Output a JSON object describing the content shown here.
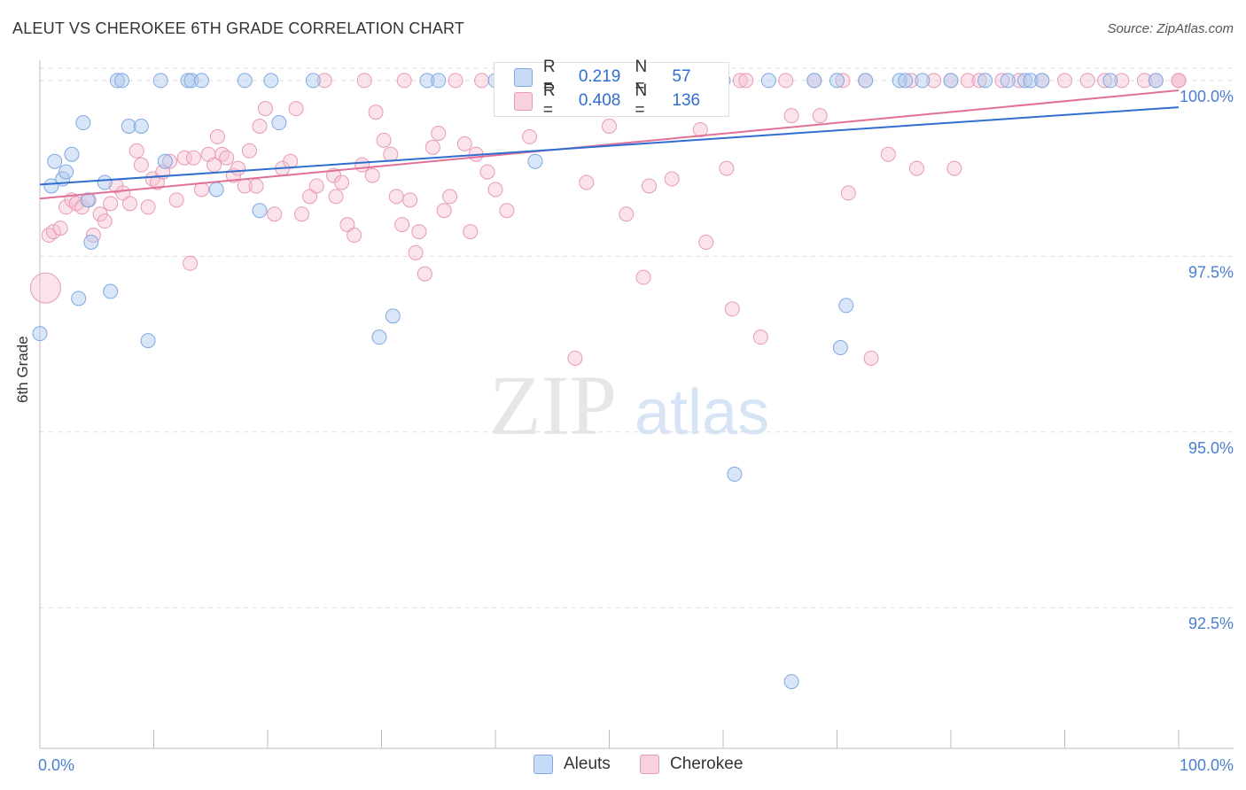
{
  "title": "ALEUT VS CHEROKEE 6TH GRADE CORRELATION CHART",
  "source": "Source: ZipAtlas.com",
  "watermark": {
    "zip": "ZIP",
    "atlas": "atlas"
  },
  "legend": {
    "rows": [
      {
        "label": "R =",
        "r": "0.219",
        "n_label": "N =",
        "n": "57",
        "color": "#aac8f0",
        "border": "#6f9fe0"
      },
      {
        "label": "R =",
        "r": "0.408",
        "n_label": "N =",
        "n": "136",
        "color": "#f7c0d2",
        "border": "#e38aaa"
      }
    ]
  },
  "bottom_legend": {
    "aleuts": "Aleuts",
    "cherokee": "Cherokee"
  },
  "colors": {
    "aleut_fill": "rgba(170,200,240,0.45)",
    "aleut_stroke": "#7fa8e0",
    "aleut_line": "#2f6ed0",
    "cherokee_fill": "rgba(247,192,210,0.45)",
    "cherokee_stroke": "#e79ab6",
    "cherokee_line": "#e0709a",
    "tick_label": "#4a7fd0",
    "grid": "#dddddd"
  },
  "chart_data": {
    "type": "scatter",
    "title": "ALEUT VS CHEROKEE 6TH GRADE CORRELATION CHART",
    "xlabel": "",
    "ylabel": "6th Grade",
    "xlim": [
      0,
      100
    ],
    "ylim": [
      90.5,
      100.15
    ],
    "x_tick_labels": [
      "0.0%",
      "100.0%"
    ],
    "y_ticks": [
      92.5,
      95.0,
      97.5,
      100.0
    ],
    "y_tick_labels": [
      "92.5%",
      "95.0%",
      "97.5%",
      "100.0%"
    ],
    "grid": "horizontal dashed",
    "legend_placement": "bottom-center",
    "series": [
      {
        "name": "Aleuts",
        "r": 0.219,
        "n": 57,
        "trend": {
          "x": [
            0,
            100
          ],
          "y": [
            98.52,
            99.62
          ]
        },
        "points": [
          [
            0,
            96.4
          ],
          [
            1,
            98.5
          ],
          [
            1.3,
            98.85
          ],
          [
            2,
            98.6
          ],
          [
            2.3,
            98.7
          ],
          [
            2.8,
            98.95
          ],
          [
            3.4,
            96.9
          ],
          [
            3.8,
            99.4
          ],
          [
            4.2,
            98.3
          ],
          [
            4.5,
            97.7
          ],
          [
            5.7,
            98.55
          ],
          [
            6.2,
            97.0
          ],
          [
            6.8,
            100
          ],
          [
            7.2,
            100
          ],
          [
            7.8,
            99.35
          ],
          [
            8.9,
            99.35
          ],
          [
            9.5,
            96.3
          ],
          [
            10.6,
            100
          ],
          [
            11,
            98.85
          ],
          [
            13,
            100
          ],
          [
            13.3,
            100
          ],
          [
            14.2,
            100
          ],
          [
            15.5,
            98.45
          ],
          [
            18,
            100
          ],
          [
            19.3,
            98.15
          ],
          [
            20.3,
            100
          ],
          [
            21,
            99.4
          ],
          [
            24,
            100
          ],
          [
            29.8,
            96.35
          ],
          [
            31,
            96.65
          ],
          [
            34,
            100
          ],
          [
            35,
            100
          ],
          [
            40,
            100
          ],
          [
            43.5,
            98.85
          ],
          [
            53,
            100
          ],
          [
            54,
            100
          ],
          [
            59,
            100
          ],
          [
            60,
            100
          ],
          [
            61,
            94.4
          ],
          [
            64,
            100
          ],
          [
            66,
            91.45
          ],
          [
            68,
            100
          ],
          [
            70,
            100
          ],
          [
            70.3,
            96.2
          ],
          [
            70.8,
            96.8
          ],
          [
            72.5,
            100
          ],
          [
            75.5,
            100
          ],
          [
            76,
            100
          ],
          [
            77.5,
            100
          ],
          [
            80,
            100
          ],
          [
            83,
            100
          ],
          [
            85,
            100
          ],
          [
            86.5,
            100
          ],
          [
            87,
            100
          ],
          [
            88,
            100
          ],
          [
            94,
            100
          ],
          [
            98,
            100
          ]
        ]
      },
      {
        "name": "Cherokee",
        "r": 0.408,
        "n": 136,
        "trend": {
          "x": [
            0,
            100
          ],
          "y": [
            98.32,
            99.86
          ]
        },
        "points": [
          [
            0.5,
            97.05
          ],
          [
            0.8,
            97.8
          ],
          [
            1.2,
            97.85
          ],
          [
            1.8,
            97.9
          ],
          [
            2.3,
            98.2
          ],
          [
            2.8,
            98.3
          ],
          [
            3.2,
            98.25
          ],
          [
            3.7,
            98.2
          ],
          [
            4.3,
            98.3
          ],
          [
            4.7,
            97.8
          ],
          [
            5.3,
            98.1
          ],
          [
            5.7,
            98.0
          ],
          [
            6.2,
            98.25
          ],
          [
            6.7,
            98.5
          ],
          [
            7.3,
            98.4
          ],
          [
            7.9,
            98.25
          ],
          [
            8.5,
            99.0
          ],
          [
            8.9,
            98.8
          ],
          [
            9.5,
            98.2
          ],
          [
            9.9,
            98.6
          ],
          [
            10.3,
            98.55
          ],
          [
            10.8,
            98.7
          ],
          [
            11.4,
            98.85
          ],
          [
            12,
            98.3
          ],
          [
            12.7,
            98.9
          ],
          [
            13.2,
            97.4
          ],
          [
            13.5,
            98.9
          ],
          [
            14.2,
            98.45
          ],
          [
            14.8,
            98.95
          ],
          [
            15.3,
            98.8
          ],
          [
            15.6,
            99.2
          ],
          [
            16,
            98.95
          ],
          [
            16.4,
            98.9
          ],
          [
            17,
            98.65
          ],
          [
            17.4,
            98.75
          ],
          [
            18,
            98.5
          ],
          [
            18.4,
            99.0
          ],
          [
            19,
            98.5
          ],
          [
            19.3,
            99.35
          ],
          [
            19.8,
            99.6
          ],
          [
            20.6,
            98.1
          ],
          [
            21.3,
            98.75
          ],
          [
            22,
            98.85
          ],
          [
            22.5,
            99.6
          ],
          [
            23,
            98.1
          ],
          [
            23.7,
            98.35
          ],
          [
            24.3,
            98.5
          ],
          [
            25,
            100
          ],
          [
            25.8,
            98.65
          ],
          [
            26,
            98.35
          ],
          [
            26.5,
            98.55
          ],
          [
            27,
            97.95
          ],
          [
            27.6,
            97.8
          ],
          [
            28.3,
            98.8
          ],
          [
            28.5,
            100
          ],
          [
            29.2,
            98.65
          ],
          [
            29.5,
            99.55
          ],
          [
            30.2,
            99.15
          ],
          [
            30.8,
            98.95
          ],
          [
            31.3,
            98.35
          ],
          [
            31.8,
            97.95
          ],
          [
            32,
            100
          ],
          [
            32.5,
            98.3
          ],
          [
            33,
            97.55
          ],
          [
            33.3,
            97.85
          ],
          [
            33.8,
            97.25
          ],
          [
            34.5,
            99.05
          ],
          [
            35,
            99.25
          ],
          [
            35.5,
            98.15
          ],
          [
            36,
            98.35
          ],
          [
            36.5,
            100
          ],
          [
            37.3,
            99.1
          ],
          [
            37.8,
            97.85
          ],
          [
            38.3,
            98.95
          ],
          [
            38.8,
            100
          ],
          [
            39.3,
            98.7
          ],
          [
            40,
            98.45
          ],
          [
            41,
            98.15
          ],
          [
            42.5,
            100
          ],
          [
            43,
            99.2
          ],
          [
            44.5,
            100
          ],
          [
            47,
            96.05
          ],
          [
            47.3,
            100
          ],
          [
            48,
            98.55
          ],
          [
            49,
            100
          ],
          [
            50,
            99.35
          ],
          [
            51,
            100
          ],
          [
            51.5,
            98.1
          ],
          [
            52,
            100
          ],
          [
            53,
            97.2
          ],
          [
            53.5,
            98.5
          ],
          [
            54.5,
            100
          ],
          [
            55.5,
            98.6
          ],
          [
            57,
            100
          ],
          [
            58,
            99.3
          ],
          [
            58.5,
            97.7
          ],
          [
            59.5,
            100
          ],
          [
            60.3,
            98.75
          ],
          [
            60.8,
            96.75
          ],
          [
            61.5,
            100
          ],
          [
            62,
            100
          ],
          [
            63.3,
            96.35
          ],
          [
            65.5,
            100
          ],
          [
            66,
            99.5
          ],
          [
            68,
            100
          ],
          [
            68.5,
            99.5
          ],
          [
            70.5,
            100
          ],
          [
            71,
            98.4
          ],
          [
            72.5,
            100
          ],
          [
            73,
            96.05
          ],
          [
            74.5,
            98.95
          ],
          [
            76.5,
            100
          ],
          [
            77,
            98.75
          ],
          [
            78.5,
            100
          ],
          [
            80,
            100
          ],
          [
            80.3,
            98.75
          ],
          [
            81.5,
            100
          ],
          [
            82.5,
            100
          ],
          [
            84.5,
            100
          ],
          [
            86,
            100
          ],
          [
            88,
            100
          ],
          [
            90,
            100
          ],
          [
            92,
            100
          ],
          [
            93.5,
            100
          ],
          [
            95,
            100
          ],
          [
            97,
            100
          ],
          [
            98,
            100
          ],
          [
            100,
            100
          ],
          [
            100,
            100
          ],
          [
            100,
            100
          ]
        ]
      }
    ]
  }
}
